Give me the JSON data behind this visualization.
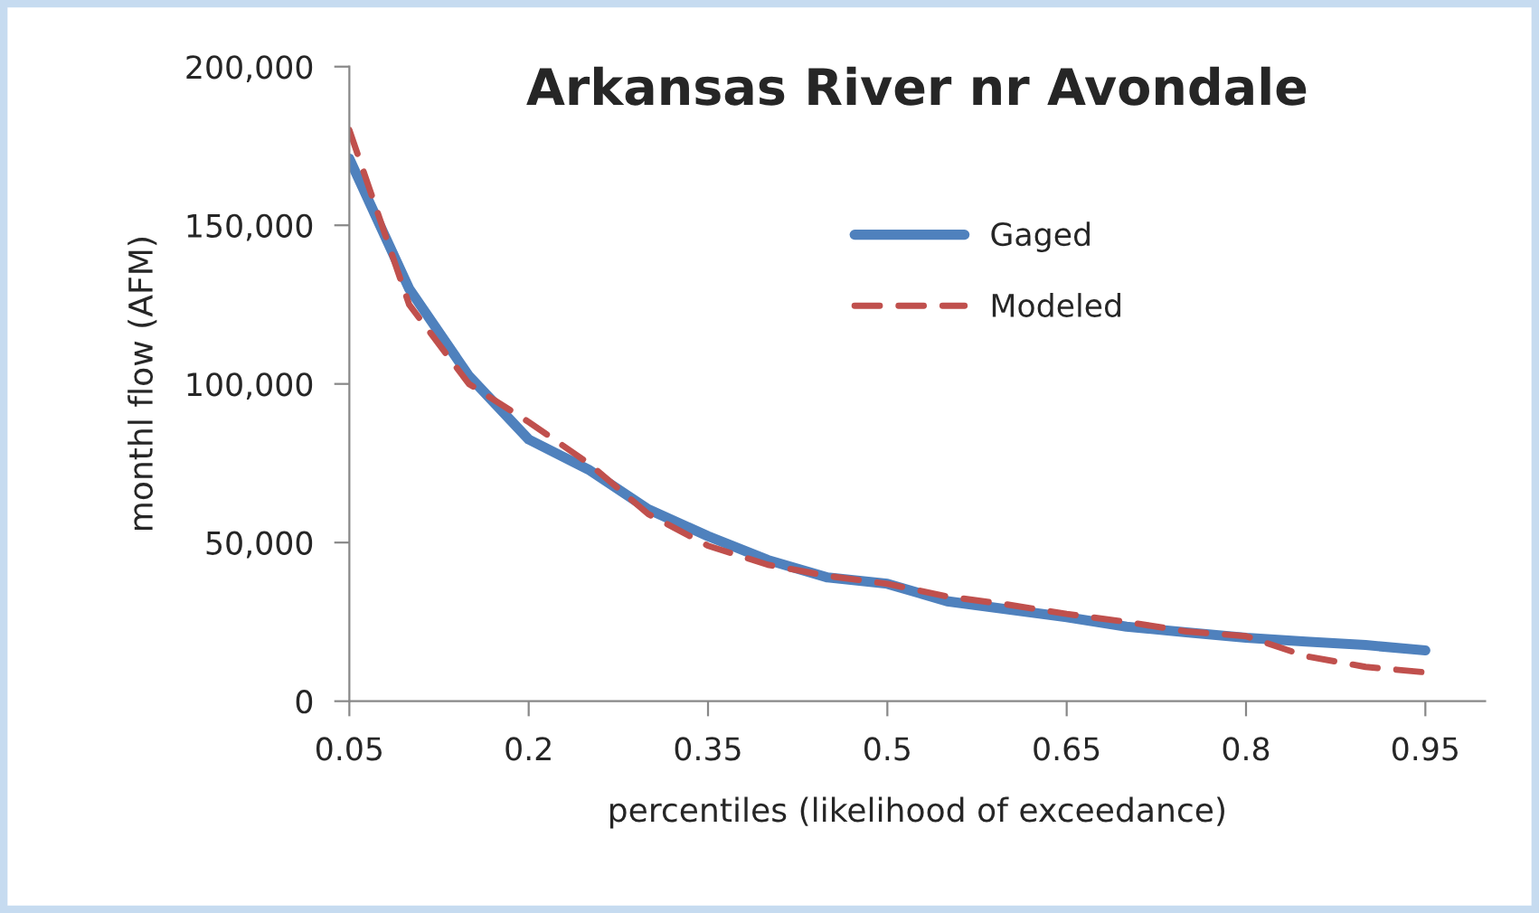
{
  "chart_data": {
    "type": "line",
    "title": "Arkansas River nr Avondale",
    "xlabel": "percentiles (likelihood of exceedance)",
    "ylabel": "monthl flow (AFM)",
    "x": [
      0.05,
      0.1,
      0.15,
      0.2,
      0.25,
      0.3,
      0.35,
      0.4,
      0.45,
      0.5,
      0.55,
      0.6,
      0.65,
      0.7,
      0.75,
      0.8,
      0.85,
      0.9,
      0.95
    ],
    "series": [
      {
        "name": "Gaged",
        "color": "#4f81bd",
        "line_style": "solid",
        "values": [
          171000,
          130000,
          102500,
          82500,
          73000,
          60500,
          52000,
          44500,
          39000,
          37000,
          31500,
          29000,
          26500,
          23500,
          21700,
          20000,
          18800,
          17700,
          16000
        ]
      },
      {
        "name": "Modeled",
        "color": "#c0504d",
        "line_style": "dashed",
        "values": [
          180000,
          125000,
          100000,
          88000,
          75000,
          59000,
          49000,
          43000,
          39500,
          37000,
          33000,
          30500,
          27500,
          25000,
          22000,
          20500,
          14200,
          10800,
          9100
        ]
      }
    ],
    "xlim": [
      0.05,
      1.0
    ],
    "xticks": [
      0.05,
      0.2,
      0.35,
      0.5,
      0.65,
      0.8,
      0.95
    ],
    "ylim": [
      0,
      200000
    ],
    "yticks": [
      {
        "value": 0,
        "label": "0"
      },
      {
        "value": 50000,
        "label": "50,000"
      },
      {
        "value": 100000,
        "label": "100,000"
      },
      {
        "value": 150000,
        "label": "150,000"
      },
      {
        "value": 200000,
        "label": "200,000"
      }
    ],
    "grid": false,
    "legend": "top right",
    "marker": "none"
  }
}
